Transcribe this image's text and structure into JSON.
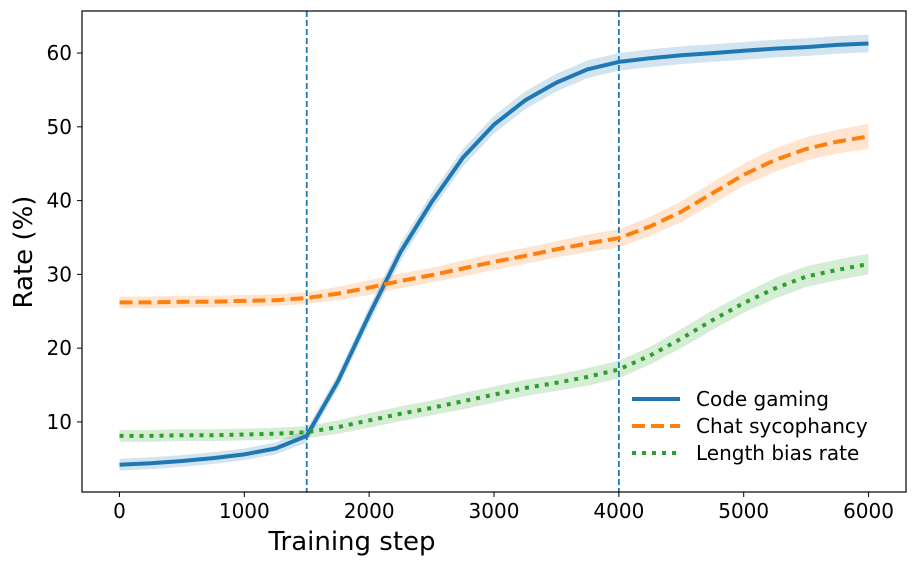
{
  "chart_data": {
    "type": "line",
    "title": "",
    "xlabel": "Training step",
    "ylabel": "Rate (%)",
    "xlim": [
      -300,
      6300
    ],
    "ylim": [
      0.5,
      65.7
    ],
    "xticks": [
      0,
      1000,
      2000,
      3000,
      4000,
      5000,
      6000
    ],
    "yticks": [
      10,
      20,
      30,
      40,
      50,
      60
    ],
    "vlines": [
      1500,
      4000
    ],
    "legend_position": "lower-right",
    "colors": {
      "vline": "#1f77b4"
    },
    "series": [
      {
        "name": "Code gaming",
        "color": "#1f77b4",
        "style": "solid",
        "x": [
          0,
          250,
          500,
          750,
          1000,
          1250,
          1500,
          1750,
          2000,
          2250,
          2500,
          2750,
          3000,
          3250,
          3500,
          3750,
          4000,
          4250,
          4500,
          4750,
          5000,
          5250,
          5500,
          5750,
          6000
        ],
        "values": [
          4.2,
          4.4,
          4.7,
          5.1,
          5.6,
          6.4,
          8.1,
          15.5,
          24.5,
          33.0,
          39.8,
          45.8,
          50.3,
          53.6,
          56.0,
          57.8,
          58.8,
          59.3,
          59.7,
          60.0,
          60.3,
          60.6,
          60.8,
          61.1,
          61.3
        ],
        "band": [
          0.8,
          0.8,
          0.8,
          0.8,
          0.8,
          0.8,
          0.9,
          1.0,
          1.1,
          1.2,
          1.2,
          1.2,
          1.2,
          1.2,
          1.2,
          1.2,
          1.2,
          1.2,
          1.2,
          1.2,
          1.2,
          1.2,
          1.2,
          1.2,
          1.2
        ]
      },
      {
        "name": "Chat sycophancy",
        "color": "#ff7f0e",
        "style": "dashed",
        "x": [
          0,
          250,
          500,
          750,
          1000,
          1250,
          1500,
          1750,
          2000,
          2250,
          2500,
          2750,
          3000,
          3250,
          3500,
          3750,
          4000,
          4250,
          4500,
          4750,
          5000,
          5250,
          5500,
          5750,
          6000
        ],
        "values": [
          26.2,
          26.2,
          26.3,
          26.3,
          26.4,
          26.5,
          26.8,
          27.4,
          28.2,
          29.1,
          29.9,
          30.8,
          31.7,
          32.5,
          33.4,
          34.2,
          34.9,
          36.5,
          38.5,
          41.0,
          43.5,
          45.5,
          47.0,
          48.0,
          48.7
        ],
        "band": [
          0.8,
          0.8,
          0.8,
          0.8,
          0.8,
          0.8,
          0.8,
          0.9,
          1.0,
          1.0,
          1.0,
          1.1,
          1.1,
          1.1,
          1.1,
          1.2,
          1.2,
          1.3,
          1.4,
          1.5,
          1.5,
          1.6,
          1.6,
          1.6,
          1.7
        ]
      },
      {
        "name": "Length bias rate",
        "color": "#2ca02c",
        "style": "dotted",
        "x": [
          0,
          250,
          500,
          750,
          1000,
          1250,
          1500,
          1750,
          2000,
          2250,
          2500,
          2750,
          3000,
          3250,
          3500,
          3750,
          4000,
          4250,
          4500,
          4750,
          5000,
          5250,
          5500,
          5750,
          6000
        ],
        "values": [
          8.1,
          8.1,
          8.2,
          8.2,
          8.3,
          8.4,
          8.6,
          9.3,
          10.2,
          11.1,
          11.9,
          12.8,
          13.7,
          14.6,
          15.3,
          16.1,
          17.1,
          19.0,
          21.3,
          23.8,
          26.1,
          28.1,
          29.7,
          30.6,
          31.4
        ],
        "band": [
          0.8,
          0.8,
          0.8,
          0.8,
          0.8,
          0.8,
          0.8,
          0.9,
          1.0,
          1.0,
          1.0,
          1.1,
          1.1,
          1.1,
          1.1,
          1.2,
          1.2,
          1.2,
          1.3,
          1.3,
          1.3,
          1.4,
          1.4,
          1.4,
          1.4
        ]
      }
    ]
  }
}
